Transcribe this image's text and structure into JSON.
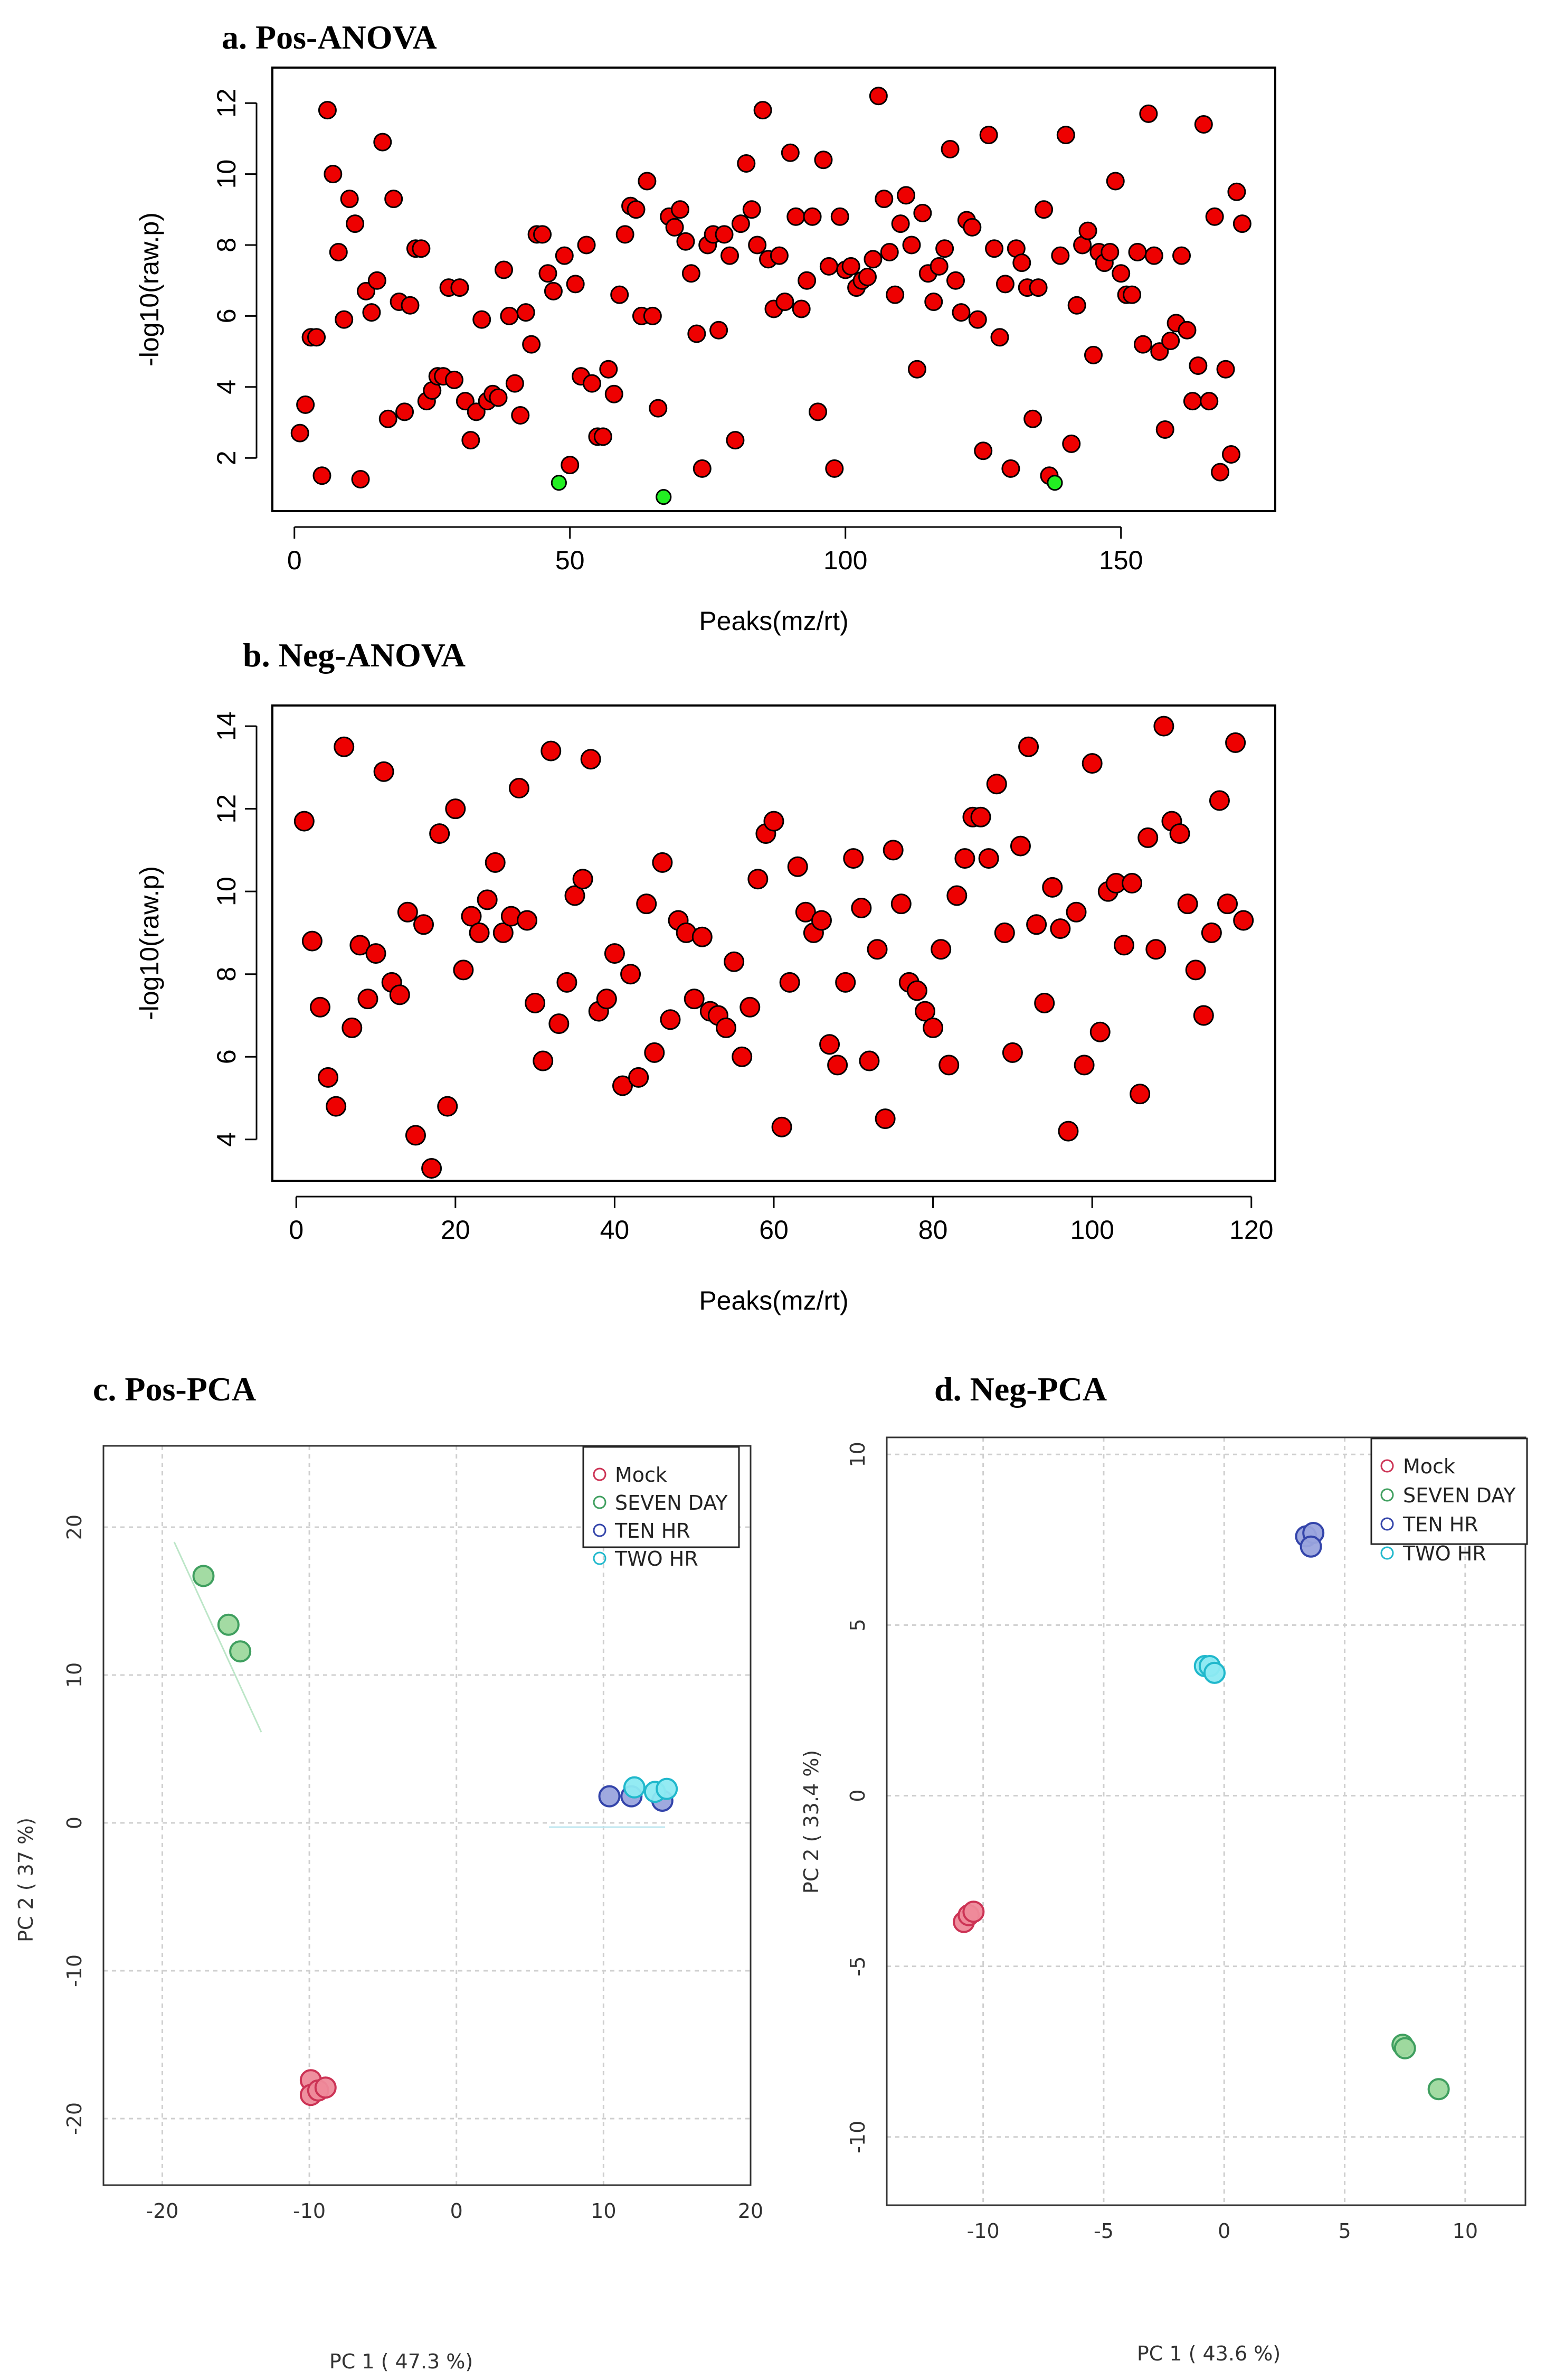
{
  "chart_data": [
    {
      "id": "a",
      "type": "scatter",
      "title": "a. Pos-ANOVA",
      "xlabel": "Peaks(mz/rt)",
      "ylabel": "-log10(raw.p)",
      "xlim": [
        -4,
        178
      ],
      "ylim": [
        0.5,
        13
      ],
      "xticks": [
        0,
        50,
        100,
        150
      ],
      "yticks": [
        2,
        4,
        6,
        8,
        10,
        12
      ],
      "point_color": "#ee0000",
      "highlight_color": "#22ee22",
      "points": [
        [
          1,
          2.7
        ],
        [
          2,
          3.5
        ],
        [
          3,
          5.4
        ],
        [
          4,
          5.4
        ],
        [
          5,
          1.5
        ],
        [
          6,
          11.8
        ],
        [
          7,
          10.0
        ],
        [
          8,
          7.8
        ],
        [
          9,
          5.9
        ],
        [
          10,
          9.3
        ],
        [
          11,
          8.6
        ],
        [
          12,
          1.4
        ],
        [
          13,
          6.7
        ],
        [
          14,
          6.1
        ],
        [
          15,
          7.0
        ],
        [
          16,
          10.9
        ],
        [
          17,
          3.1
        ],
        [
          18,
          9.3
        ],
        [
          19,
          6.4
        ],
        [
          20,
          3.3
        ],
        [
          21,
          6.3
        ],
        [
          22,
          7.9
        ],
        [
          23,
          7.9
        ],
        [
          24,
          3.6
        ],
        [
          25,
          3.9
        ],
        [
          26,
          4.3
        ],
        [
          27,
          4.3
        ],
        [
          28,
          6.8
        ],
        [
          29,
          4.2
        ],
        [
          30,
          6.8
        ],
        [
          31,
          3.6
        ],
        [
          32,
          2.5
        ],
        [
          33,
          3.3
        ],
        [
          34,
          5.9
        ],
        [
          35,
          3.6
        ],
        [
          36,
          3.8
        ],
        [
          37,
          3.7
        ],
        [
          38,
          7.3
        ],
        [
          39,
          6.0
        ],
        [
          40,
          4.1
        ],
        [
          41,
          3.2
        ],
        [
          42,
          6.1
        ],
        [
          43,
          5.2
        ],
        [
          44,
          8.3
        ],
        [
          45,
          8.3
        ],
        [
          46,
          7.2
        ],
        [
          47,
          6.7
        ],
        [
          48,
          1.3
        ],
        [
          49,
          7.7
        ],
        [
          50,
          1.8
        ],
        [
          51,
          6.9
        ],
        [
          52,
          4.3
        ],
        [
          53,
          8.0
        ],
        [
          54,
          4.1
        ],
        [
          55,
          2.6
        ],
        [
          56,
          2.6
        ],
        [
          57,
          4.5
        ],
        [
          58,
          3.8
        ],
        [
          59,
          6.6
        ],
        [
          60,
          8.3
        ],
        [
          61,
          9.1
        ],
        [
          62,
          9.0
        ],
        [
          63,
          6.0
        ],
        [
          64,
          9.8
        ],
        [
          65,
          6.0
        ],
        [
          66,
          3.4
        ],
        [
          67,
          0.9
        ],
        [
          68,
          8.8
        ],
        [
          69,
          8.5
        ],
        [
          70,
          9.0
        ],
        [
          71,
          8.1
        ],
        [
          72,
          7.2
        ],
        [
          73,
          5.5
        ],
        [
          74,
          1.7
        ],
        [
          75,
          8.0
        ],
        [
          76,
          8.3
        ],
        [
          77,
          5.6
        ],
        [
          78,
          8.3
        ],
        [
          79,
          7.7
        ],
        [
          80,
          2.5
        ],
        [
          81,
          8.6
        ],
        [
          82,
          10.3
        ],
        [
          83,
          9.0
        ],
        [
          84,
          8.0
        ],
        [
          85,
          11.8
        ],
        [
          86,
          7.6
        ],
        [
          87,
          6.2
        ],
        [
          88,
          7.7
        ],
        [
          89,
          6.4
        ],
        [
          90,
          10.6
        ],
        [
          91,
          8.8
        ],
        [
          92,
          6.2
        ],
        [
          93,
          7.0
        ],
        [
          94,
          8.8
        ],
        [
          95,
          3.3
        ],
        [
          96,
          10.4
        ],
        [
          97,
          7.4
        ],
        [
          98,
          1.7
        ],
        [
          99,
          8.8
        ],
        [
          100,
          7.3
        ],
        [
          101,
          7.4
        ],
        [
          102,
          6.8
        ],
        [
          103,
          7.0
        ],
        [
          104,
          7.1
        ],
        [
          105,
          7.6
        ],
        [
          106,
          12.2
        ],
        [
          107,
          9.3
        ],
        [
          108,
          7.8
        ],
        [
          109,
          6.6
        ],
        [
          110,
          8.6
        ],
        [
          111,
          9.4
        ],
        [
          112,
          8.0
        ],
        [
          113,
          4.5
        ],
        [
          114,
          8.9
        ],
        [
          115,
          7.2
        ],
        [
          116,
          6.4
        ],
        [
          117,
          7.4
        ],
        [
          118,
          7.9
        ],
        [
          119,
          10.7
        ],
        [
          120,
          7.0
        ],
        [
          121,
          6.1
        ],
        [
          122,
          8.7
        ],
        [
          123,
          8.5
        ],
        [
          124,
          5.9
        ],
        [
          125,
          2.2
        ],
        [
          126,
          11.1
        ],
        [
          127,
          7.9
        ],
        [
          128,
          5.4
        ],
        [
          129,
          6.9
        ],
        [
          130,
          1.7
        ],
        [
          131,
          7.9
        ],
        [
          132,
          7.5
        ],
        [
          133,
          6.8
        ],
        [
          134,
          3.1
        ],
        [
          135,
          6.8
        ],
        [
          136,
          9.0
        ],
        [
          137,
          1.5
        ],
        [
          138,
          1.3
        ],
        [
          139,
          7.7
        ],
        [
          140,
          11.1
        ],
        [
          141,
          2.4
        ],
        [
          142,
          6.3
        ],
        [
          143,
          8.0
        ],
        [
          144,
          8.4
        ],
        [
          145,
          4.9
        ],
        [
          146,
          7.8
        ],
        [
          147,
          7.5
        ],
        [
          148,
          7.8
        ],
        [
          149,
          9.8
        ],
        [
          150,
          7.2
        ],
        [
          151,
          6.6
        ],
        [
          152,
          6.6
        ],
        [
          153,
          7.8
        ],
        [
          154,
          5.2
        ],
        [
          155,
          11.7
        ],
        [
          156,
          7.7
        ],
        [
          157,
          5.0
        ],
        [
          158,
          2.8
        ],
        [
          159,
          5.3
        ],
        [
          160,
          5.8
        ],
        [
          161,
          7.7
        ],
        [
          162,
          5.6
        ],
        [
          163,
          3.6
        ],
        [
          164,
          4.6
        ],
        [
          165,
          11.4
        ],
        [
          166,
          3.6
        ],
        [
          167,
          8.8
        ],
        [
          168,
          1.6
        ],
        [
          169,
          4.5
        ],
        [
          170,
          2.1
        ],
        [
          171,
          9.5
        ],
        [
          172,
          8.6
        ]
      ],
      "highlight_indices": [
        47,
        66,
        137
      ]
    },
    {
      "id": "b",
      "type": "scatter",
      "title": "b. Neg-ANOVA",
      "xlabel": "Peaks(mz/rt)",
      "ylabel": "-log10(raw.p)",
      "xlim": [
        -3,
        123
      ],
      "ylim": [
        3,
        14.5
      ],
      "xticks": [
        0,
        20,
        40,
        60,
        80,
        100,
        120
      ],
      "yticks": [
        4,
        6,
        8,
        10,
        12,
        14
      ],
      "point_color": "#ee0000",
      "points": [
        [
          1,
          11.7
        ],
        [
          2,
          8.8
        ],
        [
          3,
          7.2
        ],
        [
          4,
          5.5
        ],
        [
          5,
          4.8
        ],
        [
          6,
          13.5
        ],
        [
          7,
          6.7
        ],
        [
          8,
          8.7
        ],
        [
          9,
          7.4
        ],
        [
          10,
          8.5
        ],
        [
          11,
          12.9
        ],
        [
          12,
          7.8
        ],
        [
          13,
          7.5
        ],
        [
          14,
          9.5
        ],
        [
          15,
          4.1
        ],
        [
          16,
          9.2
        ],
        [
          17,
          3.3
        ],
        [
          18,
          11.4
        ],
        [
          19,
          4.8
        ],
        [
          20,
          12.0
        ],
        [
          21,
          8.1
        ],
        [
          22,
          9.4
        ],
        [
          23,
          9.0
        ],
        [
          24,
          9.8
        ],
        [
          25,
          10.7
        ],
        [
          26,
          9.0
        ],
        [
          27,
          9.4
        ],
        [
          28,
          12.5
        ],
        [
          29,
          9.3
        ],
        [
          30,
          7.3
        ],
        [
          31,
          5.9
        ],
        [
          32,
          13.4
        ],
        [
          33,
          6.8
        ],
        [
          34,
          7.8
        ],
        [
          35,
          9.9
        ],
        [
          36,
          10.3
        ],
        [
          37,
          13.2
        ],
        [
          38,
          7.1
        ],
        [
          39,
          7.4
        ],
        [
          40,
          8.5
        ],
        [
          41,
          5.3
        ],
        [
          42,
          8.0
        ],
        [
          43,
          5.5
        ],
        [
          44,
          9.7
        ],
        [
          45,
          6.1
        ],
        [
          46,
          10.7
        ],
        [
          47,
          6.9
        ],
        [
          48,
          9.3
        ],
        [
          49,
          9.0
        ],
        [
          50,
          7.4
        ],
        [
          51,
          8.9
        ],
        [
          52,
          7.1
        ],
        [
          53,
          7.0
        ],
        [
          54,
          6.7
        ],
        [
          55,
          8.3
        ],
        [
          56,
          6.0
        ],
        [
          57,
          7.2
        ],
        [
          58,
          10.3
        ],
        [
          59,
          11.4
        ],
        [
          60,
          11.7
        ],
        [
          61,
          4.3
        ],
        [
          62,
          7.8
        ],
        [
          63,
          10.6
        ],
        [
          64,
          9.5
        ],
        [
          65,
          9.0
        ],
        [
          66,
          9.3
        ],
        [
          67,
          6.3
        ],
        [
          68,
          5.8
        ],
        [
          69,
          7.8
        ],
        [
          70,
          10.8
        ],
        [
          71,
          9.6
        ],
        [
          72,
          5.9
        ],
        [
          73,
          8.6
        ],
        [
          74,
          4.5
        ],
        [
          75,
          11.0
        ],
        [
          76,
          9.7
        ],
        [
          77,
          7.8
        ],
        [
          78,
          7.6
        ],
        [
          79,
          7.1
        ],
        [
          80,
          6.7
        ],
        [
          81,
          8.6
        ],
        [
          82,
          5.8
        ],
        [
          83,
          9.9
        ],
        [
          84,
          10.8
        ],
        [
          85,
          11.8
        ],
        [
          86,
          11.8
        ],
        [
          87,
          10.8
        ],
        [
          88,
          12.6
        ],
        [
          89,
          9.0
        ],
        [
          90,
          6.1
        ],
        [
          91,
          11.1
        ],
        [
          92,
          13.5
        ],
        [
          93,
          9.2
        ],
        [
          94,
          7.3
        ],
        [
          95,
          10.1
        ],
        [
          96,
          9.1
        ],
        [
          97,
          4.2
        ],
        [
          98,
          9.5
        ],
        [
          99,
          5.8
        ],
        [
          100,
          13.1
        ],
        [
          101,
          6.6
        ],
        [
          102,
          10.0
        ],
        [
          103,
          10.2
        ],
        [
          104,
          8.7
        ],
        [
          105,
          10.2
        ],
        [
          106,
          5.1
        ],
        [
          107,
          11.3
        ],
        [
          108,
          8.6
        ],
        [
          109,
          14.0
        ],
        [
          110,
          11.7
        ],
        [
          111,
          11.4
        ],
        [
          112,
          9.7
        ],
        [
          113,
          8.1
        ],
        [
          114,
          7.0
        ],
        [
          115,
          9.0
        ],
        [
          116,
          12.2
        ],
        [
          117,
          9.7
        ],
        [
          118,
          13.6
        ],
        [
          119,
          9.3
        ]
      ]
    },
    {
      "id": "c",
      "type": "scatter",
      "title": "c. Pos-PCA",
      "xlabel": "PC 1 ( 47.3 %)",
      "ylabel": "PC 2 ( 37 %)",
      "xlim": [
        -24,
        20
      ],
      "ylim": [
        -24.5,
        25.5
      ],
      "xticks": [
        -20,
        -10,
        0,
        10,
        20
      ],
      "yticks": [
        -20,
        -10,
        0,
        10,
        20
      ],
      "legend_position": "top-right",
      "legend": [
        "Mock",
        "SEVEN DAY",
        "TEN HR",
        "TWO HR"
      ],
      "series": [
        {
          "name": "Mock",
          "fill": "#ee8a9a",
          "stroke": "#cc3355",
          "points": [
            [
              -9.9,
              -17.4
            ],
            [
              -9.9,
              -18.4
            ],
            [
              -9.4,
              -18.1
            ],
            [
              -8.9,
              -17.9
            ]
          ]
        },
        {
          "name": "SEVEN DAY",
          "fill": "#9ed99e",
          "stroke": "#3f9f5f",
          "points": [
            [
              -17.2,
              16.7
            ],
            [
              -15.5,
              13.4
            ],
            [
              -14.7,
              11.6
            ]
          ]
        },
        {
          "name": "TEN HR",
          "fill": "#9aa4dd",
          "stroke": "#3344aa",
          "points": [
            [
              10.4,
              1.8
            ],
            [
              11.9,
              1.8
            ],
            [
              14.0,
              1.5
            ]
          ]
        },
        {
          "name": "TWO HR",
          "fill": "#8eeaf2",
          "stroke": "#20b8cc",
          "points": [
            [
              12.1,
              2.4
            ],
            [
              13.5,
              2.1
            ],
            [
              14.3,
              2.3
            ]
          ]
        }
      ]
    },
    {
      "id": "d",
      "type": "scatter",
      "title": "d. Neg-PCA",
      "xlabel": "PC 1 ( 43.6 %)",
      "ylabel": "PC 2 ( 33.4 %)",
      "xlim": [
        -14,
        12.5
      ],
      "ylim": [
        -12,
        10.5
      ],
      "xticks": [
        -10,
        -5,
        0,
        5,
        10
      ],
      "yticks": [
        -10,
        -5,
        0,
        5,
        10
      ],
      "legend_position": "top-right",
      "legend": [
        "Mock",
        "SEVEN DAY",
        "TEN HR",
        "TWO HR"
      ],
      "series": [
        {
          "name": "Mock",
          "fill": "#ee8a9a",
          "stroke": "#cc3355",
          "points": [
            [
              -10.8,
              -3.7
            ],
            [
              -10.6,
              -3.5
            ],
            [
              -10.4,
              -3.4
            ]
          ]
        },
        {
          "name": "SEVEN DAY",
          "fill": "#9ed99e",
          "stroke": "#3f9f5f",
          "points": [
            [
              7.4,
              -7.3
            ],
            [
              7.5,
              -7.4
            ],
            [
              8.9,
              -8.6
            ]
          ]
        },
        {
          "name": "TEN HR",
          "fill": "#9aa4dd",
          "stroke": "#3344aa",
          "points": [
            [
              3.4,
              7.6
            ],
            [
              3.7,
              7.7
            ],
            [
              3.6,
              7.3
            ]
          ]
        },
        {
          "name": "TWO HR",
          "fill": "#8eeaf2",
          "stroke": "#20b8cc",
          "points": [
            [
              -0.8,
              3.8
            ],
            [
              -0.6,
              3.8
            ],
            [
              -0.4,
              3.6
            ]
          ]
        }
      ]
    }
  ]
}
